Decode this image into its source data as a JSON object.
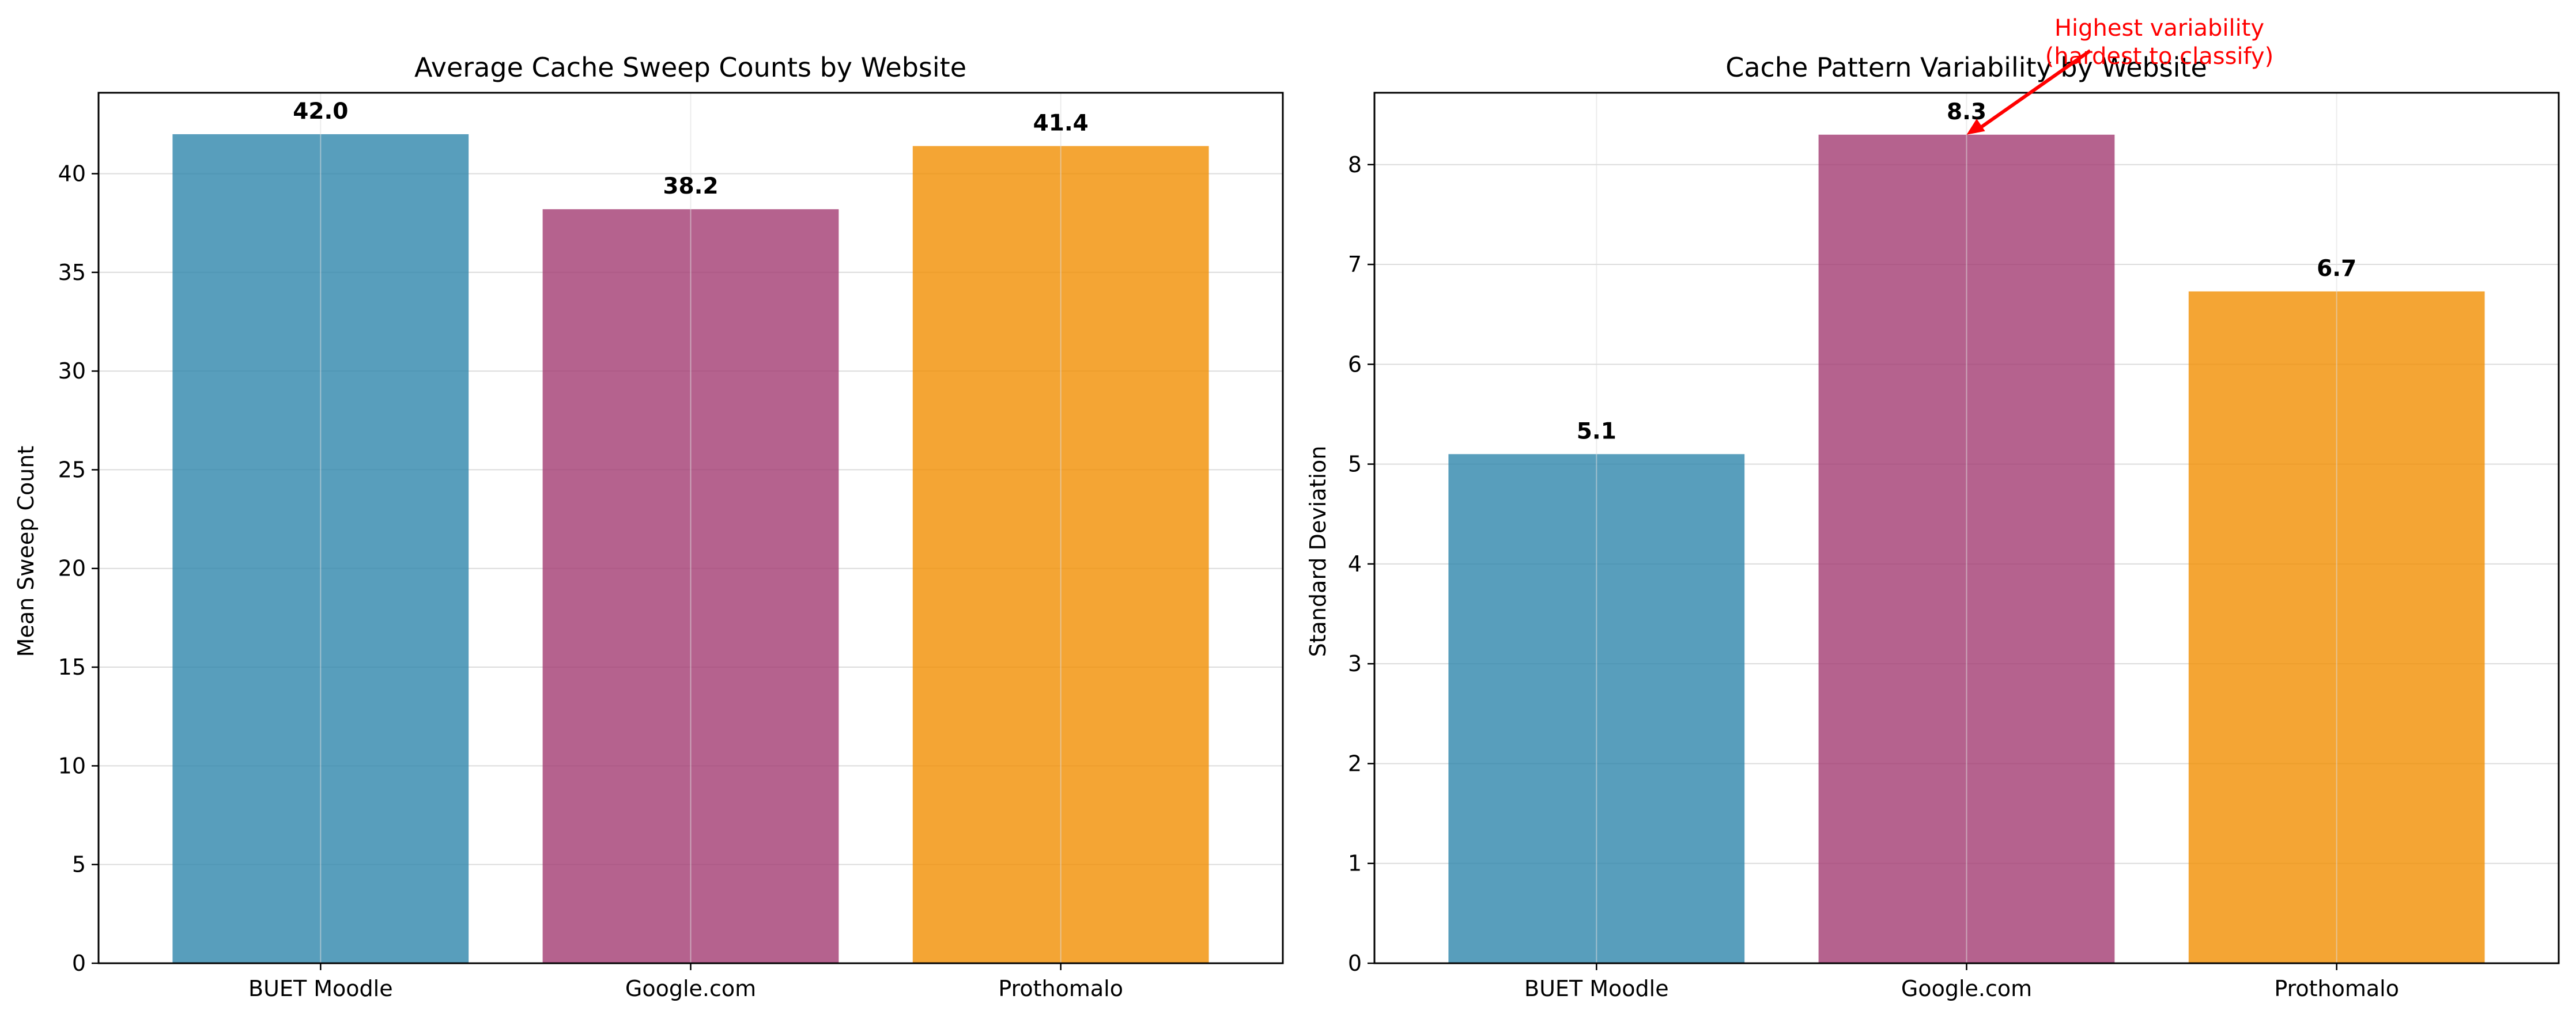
{
  "colors": {
    "bars": [
      "#2E86AB",
      "#A23B72",
      "#F18F01"
    ],
    "bar_alpha": 0.8,
    "grid": "#dcdcdc",
    "annotation": "#ff0000"
  },
  "chart_data": [
    {
      "type": "bar",
      "title": "Average Cache Sweep Counts by Website",
      "xlabel": "",
      "ylabel": "Mean Sweep Count",
      "categories": [
        "BUET Moodle",
        "Google.com",
        "Prothomalo"
      ],
      "values": [
        42.0,
        38.2,
        41.4
      ],
      "value_labels": [
        "42.0",
        "38.2",
        "41.4"
      ],
      "ylim": [
        0,
        44.1
      ],
      "yticks": [
        0,
        5,
        10,
        15,
        20,
        25,
        30,
        35,
        40
      ],
      "grid": true
    },
    {
      "type": "bar",
      "title": "Cache Pattern Variability by Website",
      "xlabel": "",
      "ylabel": "Standard Deviation",
      "categories": [
        "BUET Moodle",
        "Google.com",
        "Prothomalo"
      ],
      "values": [
        5.1,
        8.3,
        6.73
      ],
      "value_labels": [
        "5.1",
        "8.3",
        "6.7"
      ],
      "ylim": [
        0,
        8.72
      ],
      "yticks": [
        0,
        1,
        2,
        3,
        4,
        5,
        6,
        7,
        8
      ],
      "grid": true,
      "annotation": {
        "lines": [
          "Highest variability",
          "(hardest to classify)"
        ],
        "target_category": "Google.com",
        "target_value": 8.3
      }
    }
  ]
}
